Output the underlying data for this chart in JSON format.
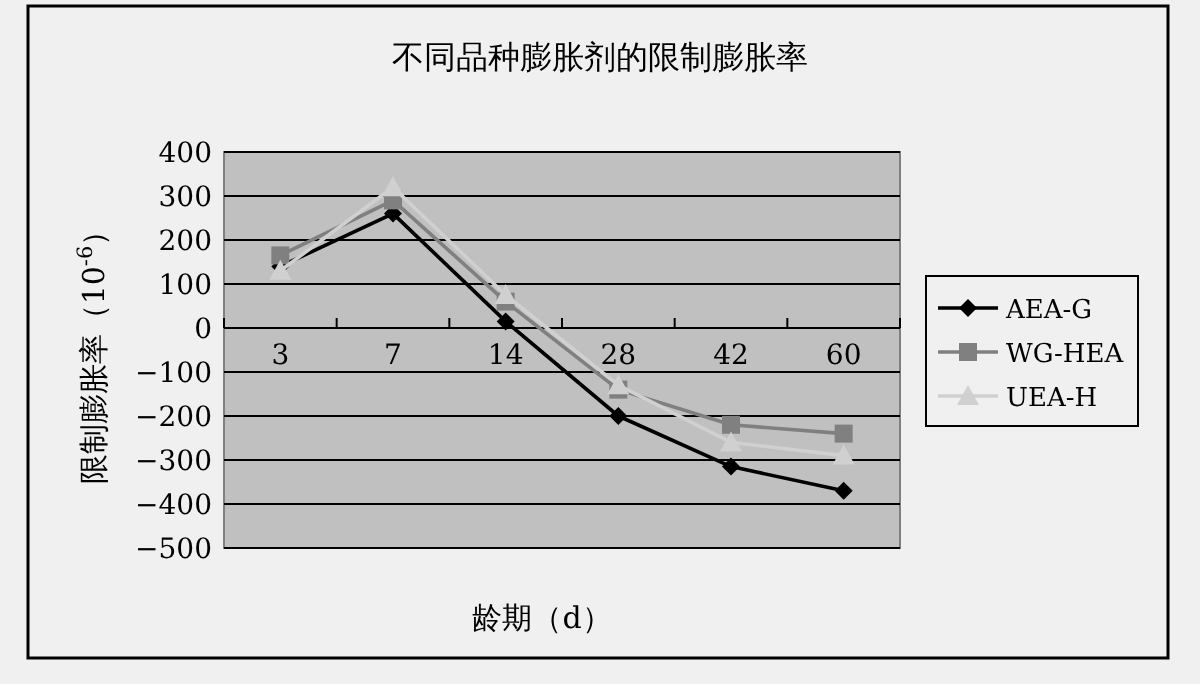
{
  "chart_data": {
    "type": "line",
    "title": "不同品种膨胀剂的限制膨胀率",
    "xlabel": "龄期（d）",
    "ylabel": "限制膨胀率（10$^{-6}$）",
    "categories": [
      "3",
      "7",
      "14",
      "28",
      "42",
      "60"
    ],
    "ylim": [
      -500,
      400
    ],
    "yticks": [
      -500,
      -400,
      -300,
      -200,
      -100,
      0,
      100,
      200,
      300,
      400
    ],
    "grid": "y",
    "legend": "right",
    "series": [
      {
        "name": "AEA-G",
        "color": "#000000",
        "marker": "diamond",
        "values": [
          140,
          260,
          15,
          -200,
          -315,
          -370
        ]
      },
      {
        "name": "WG-HEA",
        "color": "#808080",
        "marker": "square",
        "values": [
          165,
          290,
          60,
          -140,
          -220,
          -240
        ]
      },
      {
        "name": "UEA-H",
        "color": "#d0d0d0",
        "marker": "triangle",
        "values": [
          130,
          320,
          75,
          -130,
          -260,
          -290
        ]
      }
    ]
  }
}
